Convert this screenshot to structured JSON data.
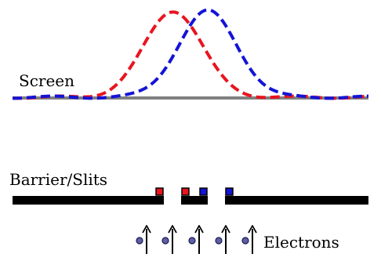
{
  "labels": {
    "screen": "Screen",
    "barrier": "Barrier/Slits",
    "electrons": "Electrons"
  },
  "colors": {
    "red_pattern": "#e8141f",
    "blue_pattern": "#1414d6",
    "screen_line": "#808080",
    "barrier": "#000000",
    "electron_fill": "#5d5fa8",
    "electron_stroke": "#1a1a4a"
  },
  "electrons": {
    "count": 5
  },
  "slit_markers": [
    {
      "color": "red"
    },
    {
      "color": "red"
    },
    {
      "color": "blue"
    },
    {
      "color": "blue"
    }
  ]
}
